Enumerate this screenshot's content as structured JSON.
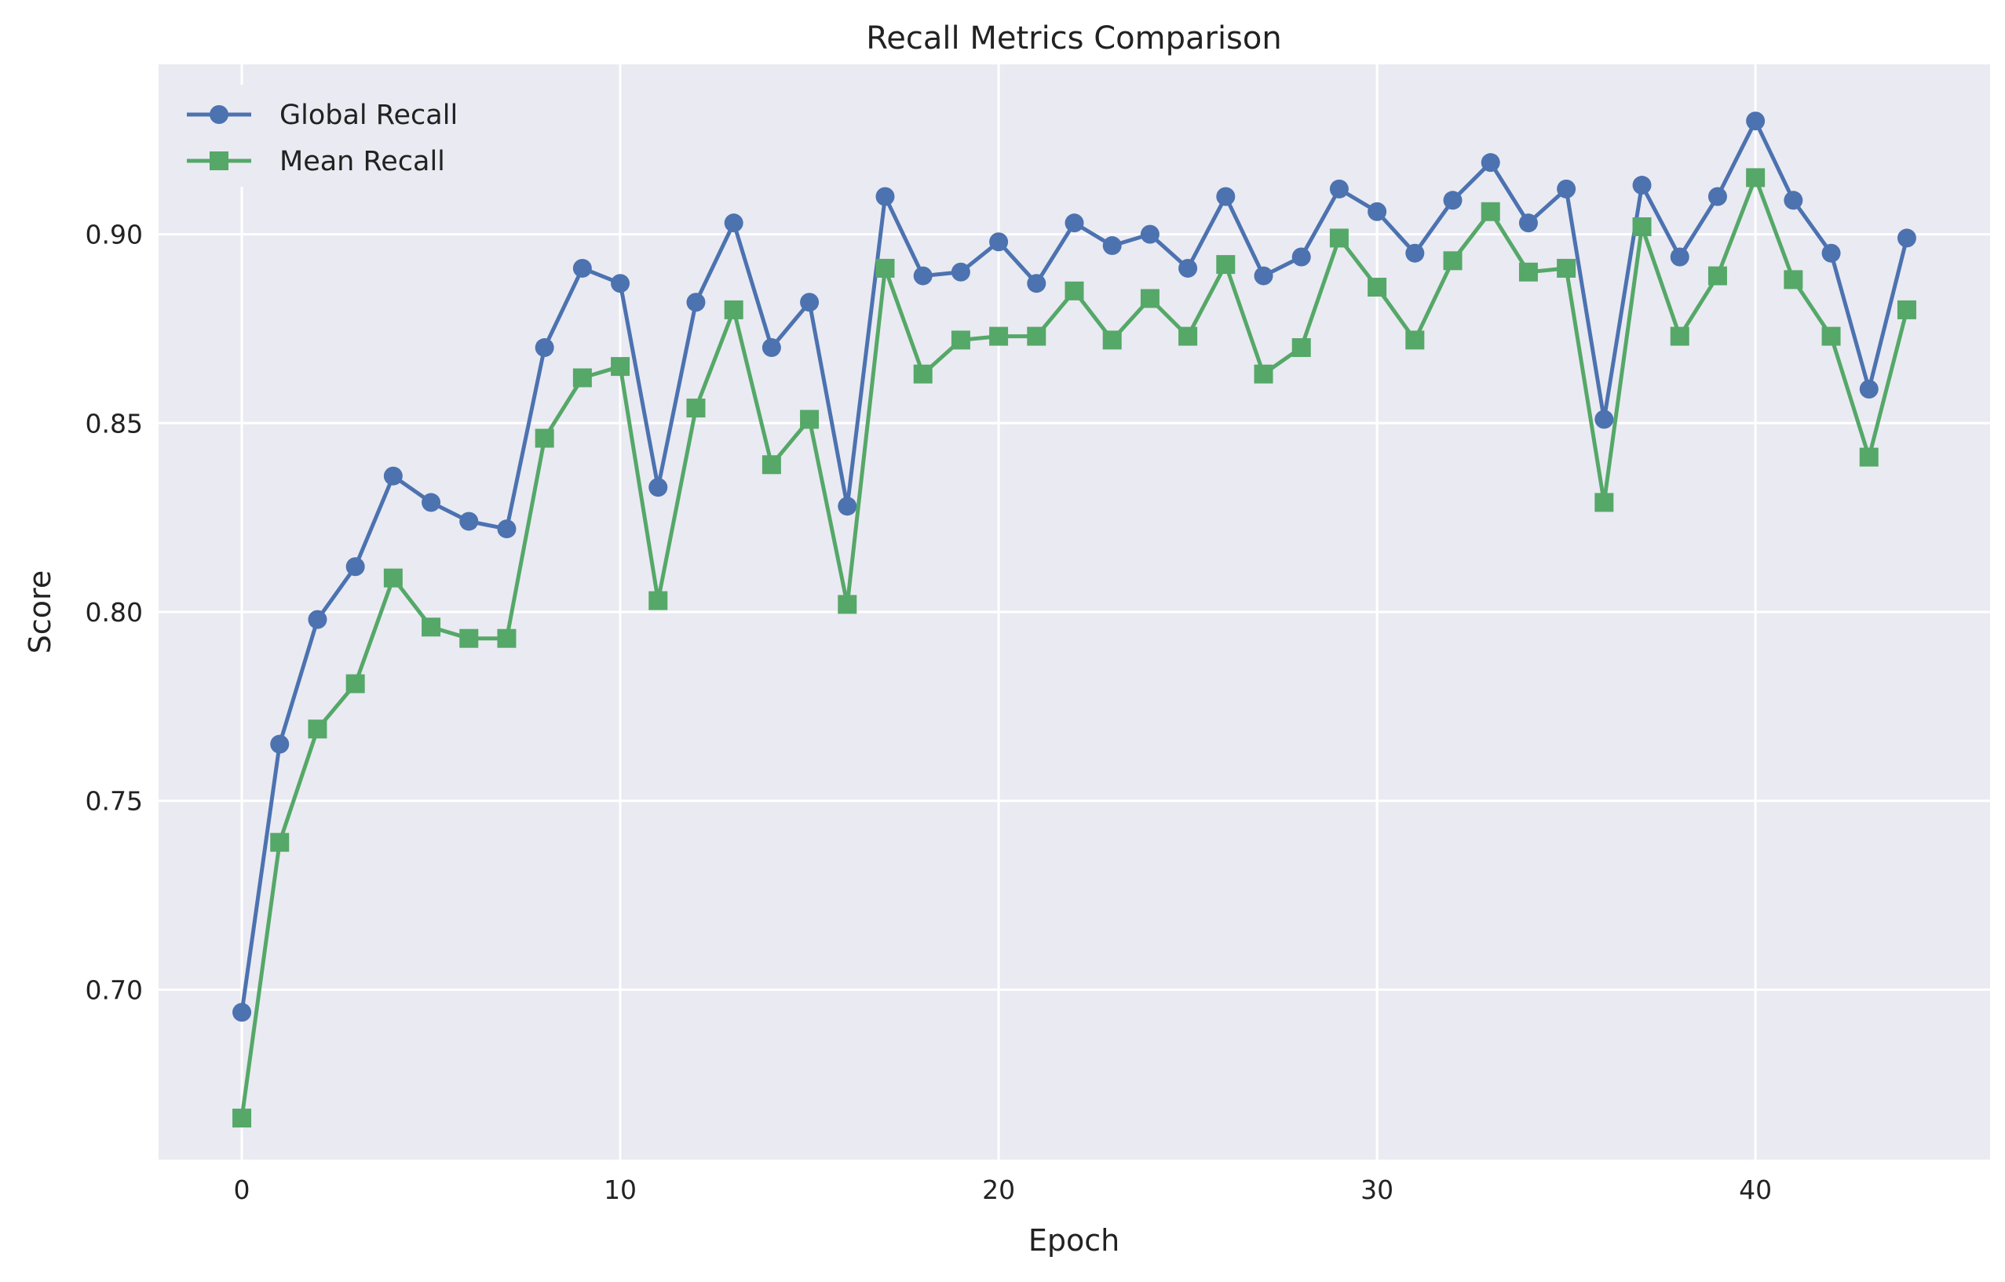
{
  "chart_data": {
    "type": "line",
    "title": "Recall Metrics Comparison",
    "xlabel": "Epoch",
    "ylabel": "Score",
    "xlim": [
      -2.2,
      46.2
    ],
    "ylim": [
      0.655,
      0.945
    ],
    "xticks": [
      0,
      10,
      20,
      30,
      40
    ],
    "yticks": [
      0.7,
      0.75,
      0.8,
      0.85,
      0.9
    ],
    "ytick_labels": [
      "0.70",
      "0.75",
      "0.80",
      "0.85",
      "0.90"
    ],
    "grid": true,
    "legend": "upper-left",
    "x": [
      0,
      1,
      2,
      3,
      4,
      5,
      6,
      7,
      8,
      9,
      10,
      11,
      12,
      13,
      14,
      15,
      16,
      17,
      18,
      19,
      20,
      21,
      22,
      23,
      24,
      25,
      26,
      27,
      28,
      29,
      30,
      31,
      32,
      33,
      34,
      35,
      36,
      37,
      38,
      39,
      40,
      41,
      42,
      43,
      44
    ],
    "series": [
      {
        "name": "Global Recall",
        "color": "#4c72b0",
        "marker": "circle",
        "values": [
          0.694,
          0.765,
          0.798,
          0.812,
          0.836,
          0.829,
          0.824,
          0.822,
          0.87,
          0.891,
          0.887,
          0.833,
          0.882,
          0.903,
          0.87,
          0.882,
          0.828,
          0.91,
          0.889,
          0.89,
          0.898,
          0.887,
          0.903,
          0.897,
          0.9,
          0.891,
          0.91,
          0.889,
          0.894,
          0.912,
          0.906,
          0.895,
          0.909,
          0.919,
          0.903,
          0.912,
          0.851,
          0.913,
          0.894,
          0.91,
          0.93,
          0.909,
          0.895,
          0.859,
          0.899
        ]
      },
      {
        "name": "Mean Recall",
        "color": "#55a868",
        "marker": "square",
        "values": [
          0.666,
          0.739,
          0.769,
          0.781,
          0.809,
          0.796,
          0.793,
          0.793,
          0.846,
          0.862,
          0.865,
          0.803,
          0.854,
          0.88,
          0.839,
          0.851,
          0.802,
          0.891,
          0.863,
          0.872,
          0.873,
          0.873,
          0.885,
          0.872,
          0.883,
          0.873,
          0.892,
          0.863,
          0.87,
          0.899,
          0.886,
          0.872,
          0.893,
          0.906,
          0.89,
          0.891,
          0.829,
          0.902,
          0.873,
          0.889,
          0.915,
          0.888,
          0.873,
          0.841,
          0.88
        ]
      }
    ]
  }
}
